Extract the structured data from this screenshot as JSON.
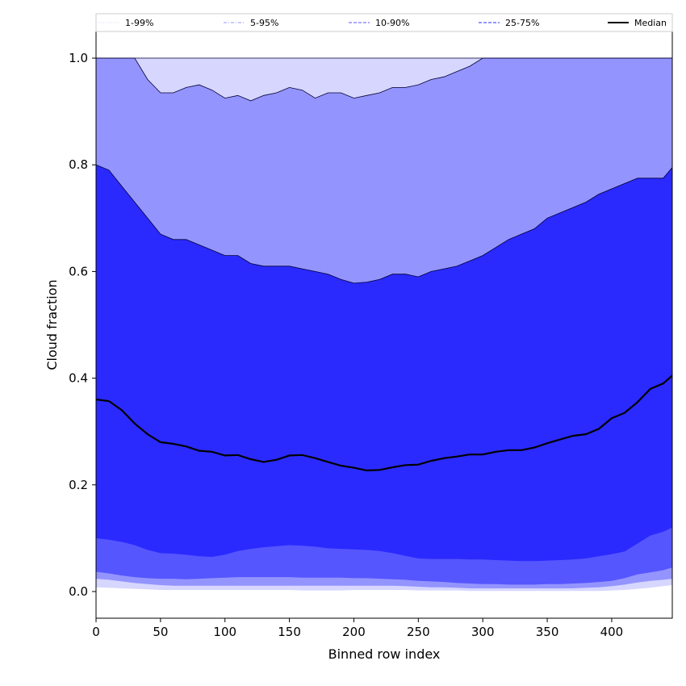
{
  "chart_data": {
    "type": "area",
    "title": "",
    "xlabel": "Binned row index",
    "ylabel": "Cloud fraction",
    "xlim": [
      0,
      447
    ],
    "ylim": [
      -0.05,
      1.05
    ],
    "xticks": [
      0,
      50,
      100,
      150,
      200,
      250,
      300,
      350,
      400
    ],
    "yticks": [
      0.0,
      0.2,
      0.4,
      0.6,
      0.8,
      1.0
    ],
    "xtick_labels": [
      "0",
      "50",
      "100",
      "150",
      "200",
      "250",
      "300",
      "350",
      "400"
    ],
    "ytick_labels": [
      "0.0",
      "0.2",
      "0.4",
      "0.6",
      "0.8",
      "1.0"
    ],
    "grid": false,
    "legend_position": "top",
    "x": [
      0,
      10,
      20,
      30,
      40,
      50,
      60,
      70,
      80,
      90,
      100,
      110,
      120,
      130,
      140,
      150,
      160,
      170,
      180,
      190,
      200,
      210,
      220,
      230,
      240,
      250,
      260,
      270,
      280,
      290,
      300,
      310,
      320,
      330,
      340,
      350,
      360,
      370,
      380,
      390,
      400,
      410,
      420,
      430,
      440,
      447
    ],
    "bands": [
      {
        "name": "1-99%",
        "color": "#d6d6ff",
        "line_style": "dotted",
        "lower": [
          0.008,
          0.007,
          0.006,
          0.005,
          0.004,
          0.003,
          0.003,
          0.003,
          0.003,
          0.003,
          0.003,
          0.003,
          0.003,
          0.003,
          0.003,
          0.003,
          0.002,
          0.002,
          0.002,
          0.002,
          0.003,
          0.003,
          0.003,
          0.003,
          0.003,
          0.002,
          0.002,
          0.002,
          0.002,
          0.001,
          0.001,
          0.001,
          0.001,
          0.001,
          0.001,
          0.001,
          0.001,
          0.001,
          0.001,
          0.001,
          0.002,
          0.003,
          0.005,
          0.007,
          0.01,
          0.012
        ],
        "upper": [
          1.0,
          1.0,
          1.0,
          1.0,
          1.0,
          1.0,
          1.0,
          1.0,
          1.0,
          1.0,
          1.0,
          1.0,
          1.0,
          1.0,
          1.0,
          1.0,
          1.0,
          1.0,
          1.0,
          1.0,
          1.0,
          1.0,
          1.0,
          1.0,
          1.0,
          1.0,
          1.0,
          1.0,
          1.0,
          1.0,
          1.0,
          1.0,
          1.0,
          1.0,
          1.0,
          1.0,
          1.0,
          1.0,
          1.0,
          1.0,
          1.0,
          1.0,
          1.0,
          1.0,
          1.0,
          1.0
        ]
      },
      {
        "name": "5-95%",
        "color": "#9494ff",
        "line_style": "dash-dot",
        "lower": [
          0.024,
          0.022,
          0.019,
          0.016,
          0.014,
          0.012,
          0.011,
          0.011,
          0.011,
          0.011,
          0.011,
          0.011,
          0.011,
          0.011,
          0.011,
          0.011,
          0.011,
          0.011,
          0.011,
          0.011,
          0.011,
          0.011,
          0.011,
          0.011,
          0.01,
          0.009,
          0.008,
          0.008,
          0.007,
          0.006,
          0.006,
          0.006,
          0.006,
          0.006,
          0.006,
          0.006,
          0.006,
          0.006,
          0.007,
          0.008,
          0.01,
          0.013,
          0.017,
          0.02,
          0.022,
          0.024
        ],
        "upper": [
          1.0,
          1.0,
          1.0,
          1.0,
          0.96,
          0.935,
          0.935,
          0.945,
          0.95,
          0.94,
          0.925,
          0.93,
          0.92,
          0.93,
          0.935,
          0.945,
          0.94,
          0.925,
          0.935,
          0.935,
          0.925,
          0.93,
          0.935,
          0.945,
          0.945,
          0.95,
          0.96,
          0.965,
          0.975,
          0.985,
          1.0,
          1.0,
          1.0,
          1.0,
          1.0,
          1.0,
          1.0,
          1.0,
          1.0,
          1.0,
          1.0,
          1.0,
          1.0,
          1.0,
          1.0,
          1.0
        ]
      },
      {
        "name": "10-90%",
        "color": "#5656ff",
        "line_style": "dashed",
        "lower": [
          0.037,
          0.034,
          0.03,
          0.027,
          0.025,
          0.024,
          0.024,
          0.023,
          0.024,
          0.025,
          0.026,
          0.027,
          0.027,
          0.027,
          0.027,
          0.027,
          0.026,
          0.026,
          0.026,
          0.026,
          0.025,
          0.025,
          0.024,
          0.023,
          0.022,
          0.02,
          0.019,
          0.018,
          0.016,
          0.015,
          0.014,
          0.014,
          0.013,
          0.013,
          0.013,
          0.014,
          0.014,
          0.015,
          0.016,
          0.018,
          0.02,
          0.025,
          0.032,
          0.036,
          0.04,
          0.045
        ],
        "upper": [
          0.8,
          0.79,
          0.76,
          0.73,
          0.7,
          0.67,
          0.66,
          0.66,
          0.65,
          0.64,
          0.63,
          0.63,
          0.615,
          0.61,
          0.61,
          0.61,
          0.605,
          0.6,
          0.595,
          0.585,
          0.578,
          0.58,
          0.585,
          0.595,
          0.595,
          0.59,
          0.6,
          0.605,
          0.61,
          0.62,
          0.63,
          0.645,
          0.66,
          0.67,
          0.68,
          0.7,
          0.71,
          0.72,
          0.73,
          0.745,
          0.755,
          0.765,
          0.775,
          0.775,
          0.775,
          0.795
        ]
      },
      {
        "name": "25-75%",
        "color": "#2a2aff",
        "line_style": "dashed",
        "lower": [
          0.1,
          0.097,
          0.093,
          0.087,
          0.078,
          0.072,
          0.071,
          0.069,
          0.066,
          0.065,
          0.069,
          0.076,
          0.08,
          0.083,
          0.085,
          0.087,
          0.086,
          0.084,
          0.081,
          0.08,
          0.079,
          0.078,
          0.076,
          0.072,
          0.067,
          0.062,
          0.061,
          0.061,
          0.061,
          0.06,
          0.06,
          0.059,
          0.058,
          0.057,
          0.057,
          0.058,
          0.059,
          0.06,
          0.062,
          0.066,
          0.07,
          0.075,
          0.09,
          0.105,
          0.112,
          0.12
        ]
      }
    ],
    "series": [
      {
        "name": "Median",
        "color": "#000000",
        "values": [
          0.36,
          0.357,
          0.34,
          0.315,
          0.295,
          0.28,
          0.277,
          0.272,
          0.264,
          0.262,
          0.255,
          0.256,
          0.248,
          0.243,
          0.247,
          0.255,
          0.256,
          0.25,
          0.243,
          0.236,
          0.232,
          0.227,
          0.228,
          0.233,
          0.237,
          0.238,
          0.245,
          0.25,
          0.253,
          0.257,
          0.257,
          0.262,
          0.265,
          0.265,
          0.27,
          0.278,
          0.285,
          0.292,
          0.295,
          0.305,
          0.325,
          0.335,
          0.355,
          0.38,
          0.39,
          0.405
        ]
      }
    ]
  }
}
